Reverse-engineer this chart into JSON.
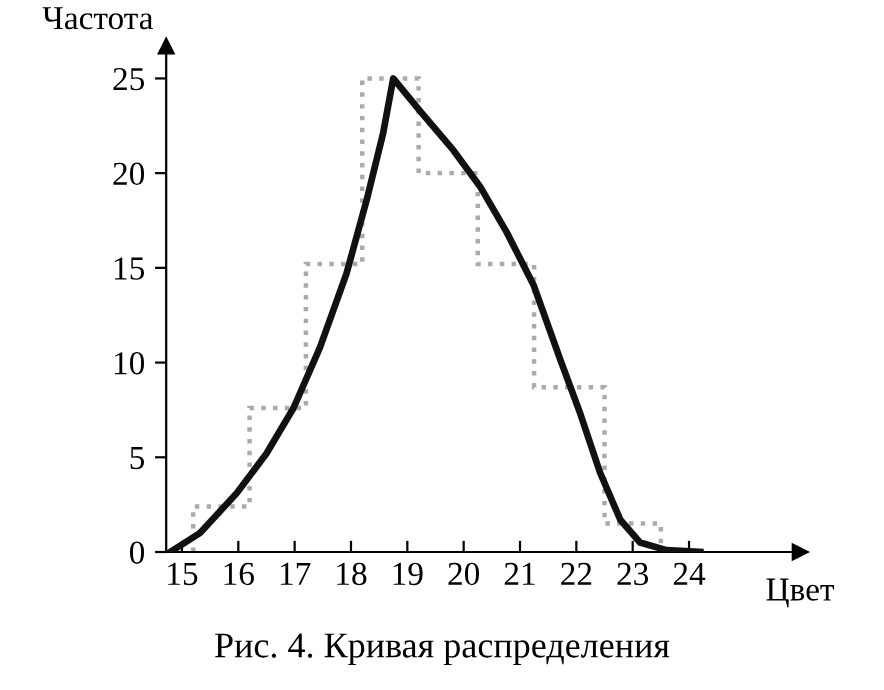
{
  "chart_data": {
    "type": "histogram",
    "ylabel": "Частота",
    "xlabel": "Цвет",
    "annotations": [
      "Рис. 4. Кривая распределения"
    ],
    "bins": [
      15.2,
      16.2,
      17.2,
      18.2,
      19.2,
      20.25,
      21.25,
      22.5,
      23.5
    ],
    "values": [
      2.4,
      7.6,
      15.2,
      25,
      20,
      15.2,
      8.7,
      1.5
    ],
    "color": "#aaaaaa",
    "line_style": "dotted",
    "series": [
      {
        "type": "line",
        "color": "#111111",
        "line_style": "solid",
        "x": [
          14.79,
          15.32,
          15.97,
          16.5,
          16.98,
          17.45,
          17.92,
          18.28,
          18.57,
          18.75,
          19.22,
          19.82,
          20.29,
          20.76,
          21.24,
          21.71,
          22.07,
          22.42,
          22.78,
          23.13,
          23.6,
          24.2
        ],
        "values": [
          0,
          1.0,
          3.1,
          5.2,
          7.6,
          10.8,
          14.7,
          18.6,
          22.1,
          25,
          23.3,
          21.2,
          19.3,
          16.9,
          14.1,
          10.2,
          7.3,
          4.2,
          1.7,
          0.5,
          0.1,
          0
        ]
      }
    ],
    "xlim": [
      14.72,
      25.97
    ],
    "ylim": [
      0,
      26.7
    ],
    "xticks": [
      15,
      16,
      17,
      18,
      19,
      20,
      21,
      22,
      23,
      24
    ],
    "yticks": [
      0,
      5,
      10,
      15,
      20,
      25
    ],
    "grid": false,
    "legend": false
  }
}
